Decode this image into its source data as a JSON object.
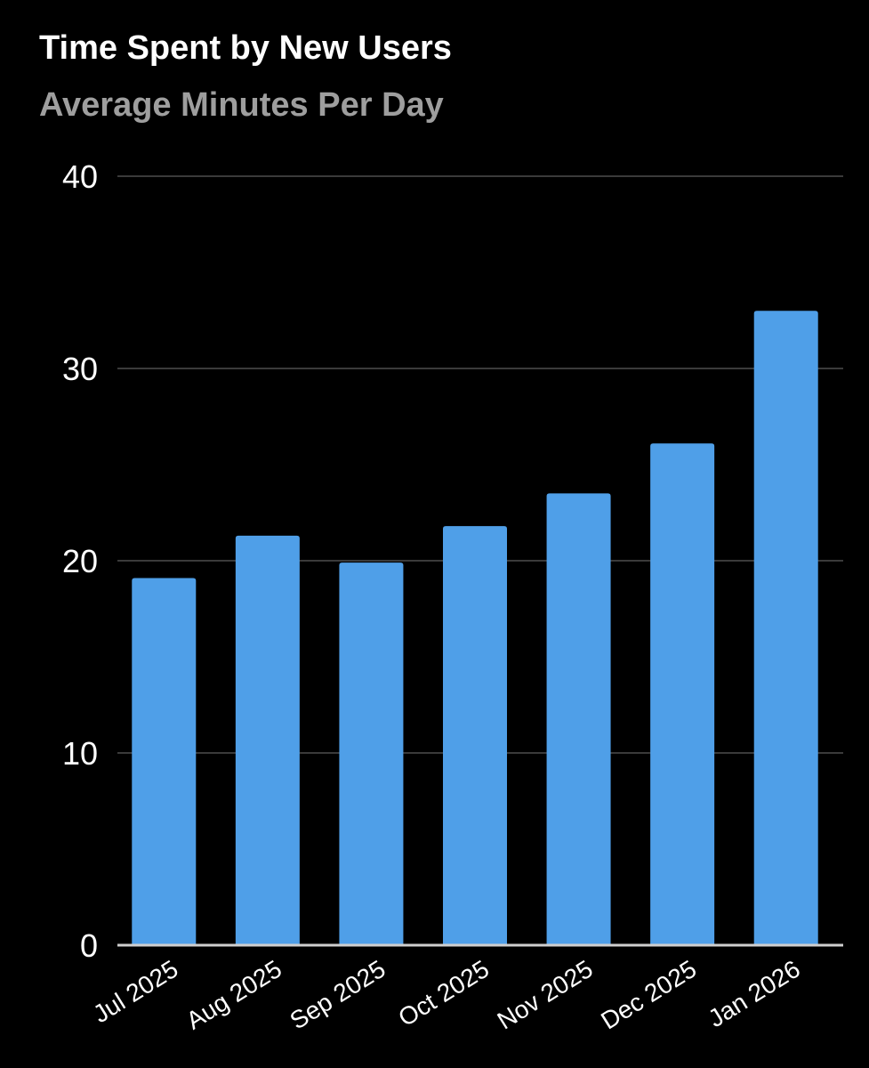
{
  "chart_data": {
    "type": "bar",
    "title": "Time Spent by New Users",
    "subtitle": "Average Minutes Per Day",
    "xlabel": "",
    "ylabel": "",
    "categories": [
      "Jul 2025",
      "Aug 2025",
      "Sep 2025",
      "Oct 2025",
      "Nov 2025",
      "Dec 2025",
      "Jan 2026"
    ],
    "series": [
      {
        "values": [
          19.1,
          21.3,
          19.9,
          21.8,
          23.5,
          26.1,
          33.0
        ]
      }
    ],
    "ylim": [
      0,
      40
    ],
    "yticks": [
      0,
      10,
      20,
      30,
      40
    ],
    "grid": true,
    "legend": "none",
    "colors": {
      "background": "#000000",
      "bar": "#4f9fe8",
      "grid": "#3a3a3a",
      "axis": "#cfcfcf",
      "text": "#ffffff",
      "subtitle": "#9e9e9e"
    }
  }
}
